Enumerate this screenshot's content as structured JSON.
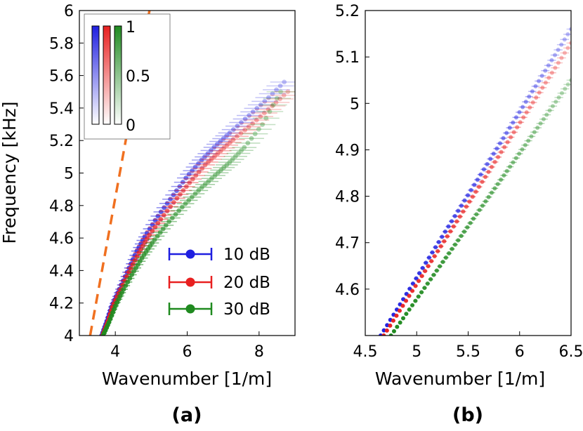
{
  "chart_data": [
    {
      "panel": "a",
      "panel_label": "(a)",
      "type": "scatter",
      "xlabel": "Wavenumber [1/m]",
      "ylabel": "Frequency [kHz]",
      "xlim": [
        3,
        9
      ],
      "ylim": [
        4,
        6
      ],
      "xticks": [
        4,
        6,
        8
      ],
      "yticks": [
        4,
        4.2,
        4.4,
        4.6,
        4.8,
        5,
        5.2,
        5.4,
        5.6,
        5.8,
        6
      ],
      "ytick_labels": [
        "4",
        "4.2",
        "4.4",
        "4.6",
        "4.8",
        "5",
        "5.2",
        "5.4",
        "5.6",
        "5.8",
        "6"
      ],
      "series": [
        {
          "name": "10 dB",
          "color": "#1f1fe0",
          "x": [
            3.62,
            3.75,
            3.9,
            4.1,
            4.35,
            4.6,
            4.85,
            5.2,
            5.6,
            6.0,
            6.4,
            6.8,
            7.2,
            7.7,
            8.2,
            8.7
          ],
          "y": [
            4.0,
            4.08,
            4.18,
            4.28,
            4.4,
            4.52,
            4.62,
            4.74,
            4.86,
            4.98,
            5.08,
            5.17,
            5.25,
            5.35,
            5.45,
            5.56
          ]
        },
        {
          "name": "20 dB",
          "color": "#e82020",
          "x": [
            3.64,
            3.78,
            3.93,
            4.14,
            4.4,
            4.66,
            4.92,
            5.28,
            5.7,
            6.1,
            6.5,
            6.9,
            7.3,
            7.8,
            8.3,
            8.8
          ],
          "y": [
            4.0,
            4.08,
            4.18,
            4.28,
            4.4,
            4.51,
            4.61,
            4.72,
            4.84,
            4.95,
            5.05,
            5.13,
            5.21,
            5.3,
            5.4,
            5.5
          ]
        },
        {
          "name": "30 dB",
          "color": "#1f8a1f",
          "x": [
            3.66,
            3.82,
            4.0,
            4.22,
            4.5,
            4.78,
            5.06,
            5.45,
            5.9,
            6.35,
            6.8,
            7.2,
            7.6,
            8.1,
            8.6
          ],
          "y": [
            4.0,
            4.08,
            4.18,
            4.28,
            4.39,
            4.49,
            4.58,
            4.69,
            4.8,
            4.9,
            4.99,
            5.07,
            5.16,
            5.3,
            5.5
          ]
        }
      ],
      "dashed_line": {
        "color": "#f07020",
        "x": [
          3.3,
          4.95
        ],
        "y": [
          4.0,
          6.0
        ]
      },
      "colorbar": {
        "ticks": [
          "1",
          "0.5",
          "0"
        ],
        "colors": [
          "#1f1fe0",
          "#e82020",
          "#1f8a1f"
        ]
      },
      "legend": {
        "placement": "bottom-right",
        "entries": [
          "10 dB",
          "20 dB",
          "30 dB"
        ]
      }
    },
    {
      "panel": "b",
      "panel_label": "(b)",
      "type": "scatter",
      "xlabel": "Wavenumber [1/m]",
      "xlim": [
        4.5,
        6.5
      ],
      "ylim": [
        4.5,
        5.2
      ],
      "xticks": [
        4.5,
        5,
        5.5,
        6,
        6.5
      ],
      "yticks": [
        4.6,
        4.7,
        4.8,
        4.9,
        5,
        5.1,
        5.2
      ],
      "ytick_labels": [
        "4.6",
        "4.7",
        "4.8",
        "4.9",
        "5",
        "5.1",
        "5.2"
      ],
      "series": [
        {
          "name": "10 dB",
          "color": "#1f1fe0",
          "x": [
            4.65,
            6.5
          ],
          "y": [
            4.5,
            5.16
          ]
        },
        {
          "name": "20 dB",
          "color": "#e82020",
          "x": [
            4.68,
            6.5
          ],
          "y": [
            4.5,
            5.13
          ]
        },
        {
          "name": "30 dB",
          "color": "#1f8a1f",
          "x": [
            4.75,
            6.5
          ],
          "y": [
            4.5,
            5.05
          ]
        }
      ]
    }
  ]
}
